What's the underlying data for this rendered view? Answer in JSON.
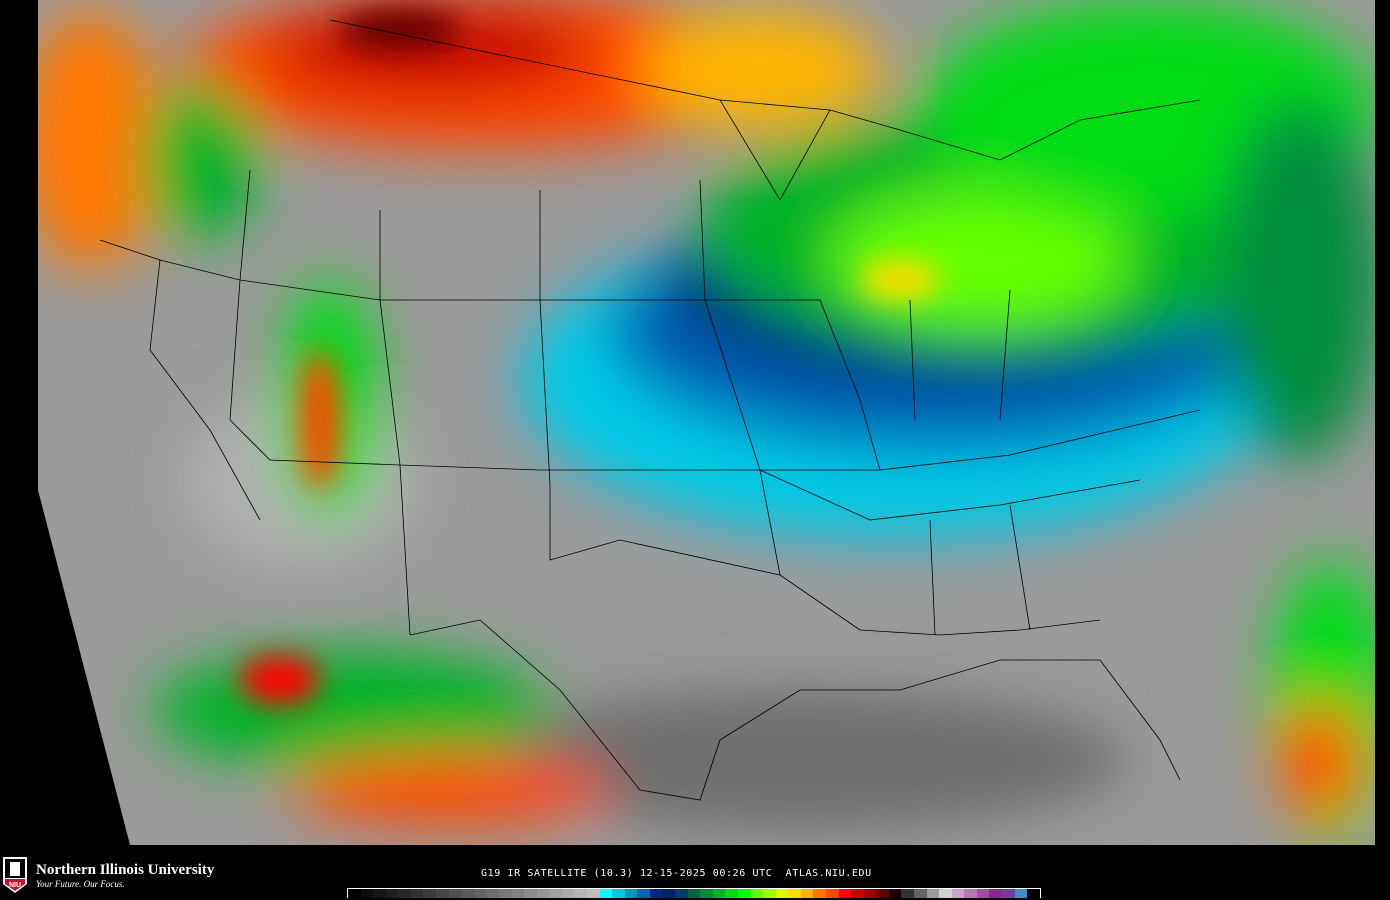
{
  "branding": {
    "university": "Northern Illinois University",
    "tagline": "Your Future. Our Focus.",
    "seal_text": "NIU"
  },
  "caption": {
    "satellite": "G19",
    "product": "IR SATELLITE",
    "band": "(10.3)",
    "date": "12-15-2025",
    "time": "00:26 UTC",
    "site": "ATLAS.NIU.EDU"
  },
  "map": {
    "type": "infrared satellite imagery",
    "region": "Contiguous United States",
    "overlays": [
      "state boundaries",
      "country boundaries",
      "coastlines"
    ]
  },
  "colorbar": {
    "colors": [
      "#000000",
      "#0a0a0a",
      "#141414",
      "#1e1e1e",
      "#282828",
      "#323232",
      "#3c3c3c",
      "#464646",
      "#505050",
      "#5a5a5a",
      "#646464",
      "#6e6e6e",
      "#787878",
      "#828282",
      "#8c8c8c",
      "#969696",
      "#a0a0a0",
      "#aaaaaa",
      "#b4b4b4",
      "#bebebe",
      "#00ffff",
      "#00c8e6",
      "#0096c8",
      "#0064b4",
      "#00288c",
      "#001e78",
      "#003c64",
      "#00643c",
      "#008c3c",
      "#00b428",
      "#00dc14",
      "#00ff00",
      "#64ff00",
      "#a0ff00",
      "#dcff00",
      "#ffdc00",
      "#ffb400",
      "#ff7800",
      "#ff4600",
      "#ff0000",
      "#c80000",
      "#960000",
      "#640000",
      "#1e0000",
      "#323232",
      "#646464",
      "#9b9b9b",
      "#d2d2d2",
      "#c8a0c8",
      "#b478b4",
      "#a050a0",
      "#8c288c",
      "#783ca0",
      "#3c8cc8",
      "#000000"
    ]
  }
}
